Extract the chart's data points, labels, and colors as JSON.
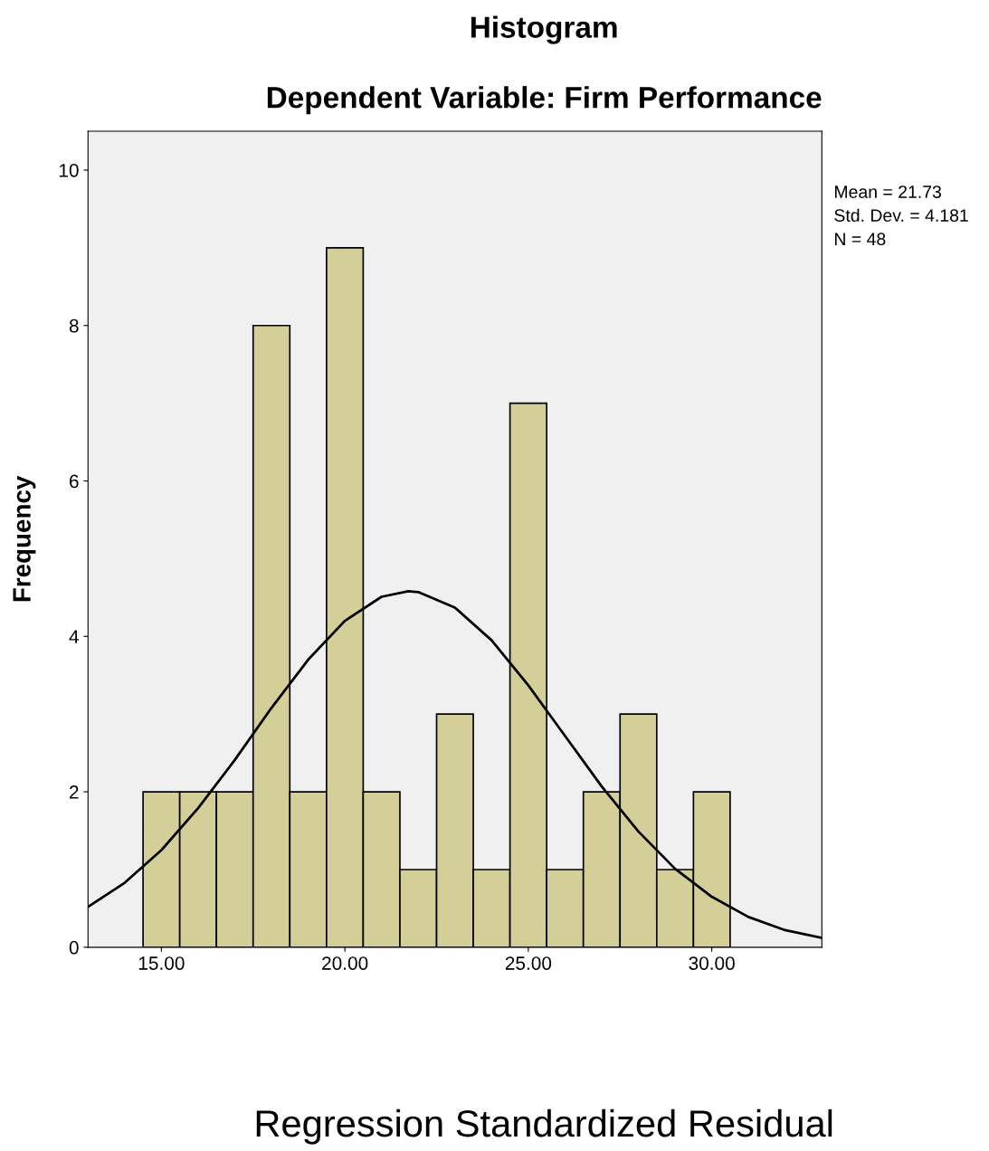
{
  "chart_data": {
    "type": "histogram",
    "title": "Histogram",
    "subtitle": "Dependent Variable: Firm Performance",
    "xlabel": "Regression Standardized Residual",
    "ylabel": "Frequency",
    "bins": [
      14.5,
      15.5,
      16.5,
      17.5,
      18.5,
      19.5,
      20.5,
      21.5,
      22.5,
      23.5,
      24.5,
      25.5,
      26.5,
      27.5,
      28.5,
      29.5,
      30.5
    ],
    "values": [
      2,
      2,
      2,
      8,
      2,
      9,
      2,
      1,
      3,
      1,
      7,
      1,
      2,
      3,
      1,
      2
    ],
    "color": "#d4cf98",
    "series": [
      {
        "type": "line",
        "color": "#000000",
        "x": [
          13,
          14,
          15,
          16,
          17,
          18,
          19,
          20,
          21,
          21.73,
          22,
          23,
          24,
          25,
          26,
          27,
          28,
          29,
          30,
          31,
          32,
          33
        ],
        "values": [
          0.52,
          0.83,
          1.25,
          1.79,
          2.41,
          3.08,
          3.7,
          4.2,
          4.51,
          4.58,
          4.57,
          4.37,
          3.95,
          3.37,
          2.72,
          2.07,
          1.49,
          1.01,
          0.65,
          0.39,
          0.22,
          0.12
        ]
      }
    ],
    "xlim": [
      13,
      33
    ],
    "ylim": [
      0,
      10.5
    ],
    "xticks": [
      {
        "value": 15,
        "label": "15.00"
      },
      {
        "value": 20,
        "label": "20.00"
      },
      {
        "value": 25,
        "label": "25.00"
      },
      {
        "value": 30,
        "label": "30.00"
      }
    ],
    "yticks": [
      0,
      2,
      4,
      6,
      8,
      10
    ],
    "annotations": [
      "Mean = 21.73",
      "Std. Dev. = 4.181",
      "N = 48"
    ]
  }
}
